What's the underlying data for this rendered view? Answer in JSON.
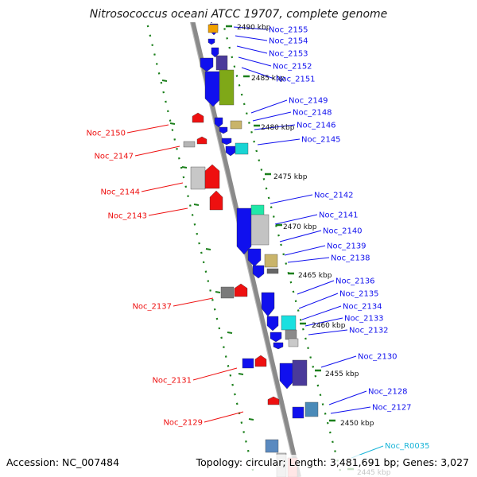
{
  "title": "Nitrosococcus oceani ATCC 19707, complete genome",
  "footer": {
    "accession": "Accession: NC_007484",
    "topology": "Topology: circular; Length: 3,481,691 bp; Genes: 3,027"
  },
  "scale_labels": [
    "2490 kbp",
    "2485 kbp",
    "2480 kbp",
    "2475 kbp",
    "2470 kbp",
    "2465 kbp",
    "2460 kbp",
    "2455 kbp",
    "2450 kbp",
    "2445 kbp"
  ],
  "right_labels": [
    "Noc_2155",
    "Noc_2154",
    "Noc_2153",
    "Noc_2152",
    "Noc_2151",
    "Noc_2149",
    "Noc_2148",
    "Noc_2146",
    "Noc_2145",
    "Noc_2142",
    "Noc_2141",
    "Noc_2140",
    "Noc_2139",
    "Noc_2138",
    "Noc_2136",
    "Noc_2135",
    "Noc_2134",
    "Noc_2133",
    "Noc_2132",
    "Noc_2130",
    "Noc_2128",
    "Noc_2127"
  ],
  "left_labels": [
    "Noc_2150",
    "Noc_2147",
    "Noc_2144",
    "Noc_2143",
    "Noc_2137",
    "Noc_2131",
    "Noc_2129"
  ],
  "rna_label": "Noc_R0035",
  "colors": {
    "forward_gene": "#1010ee",
    "reverse_gene": "#ee1010",
    "rna_label": "#18b4d8",
    "scale_tick": "#1b7f1b",
    "backbone": "#8a8a8a"
  }
}
